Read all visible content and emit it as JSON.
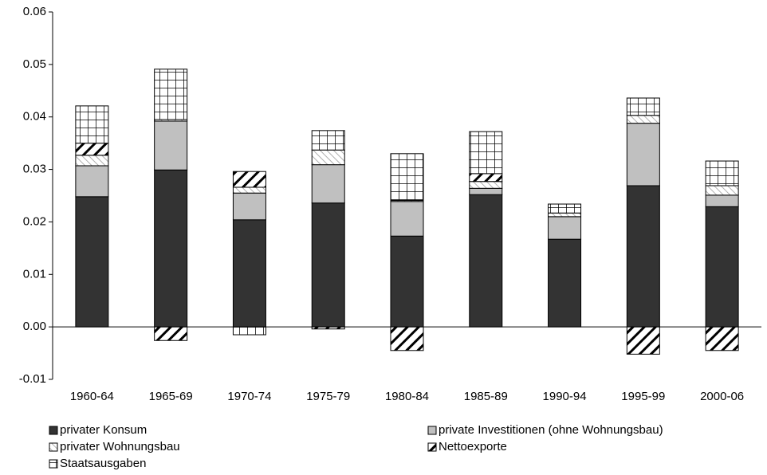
{
  "chart_data": {
    "type": "stacked-bar",
    "categories": [
      "1960-64",
      "1965-69",
      "1970-74",
      "1975-79",
      "1980-84",
      "1985-89",
      "1990-94",
      "1995-99",
      "2000-06"
    ],
    "series": [
      {
        "name": "privater Konsum",
        "color": "#333333",
        "pattern": "solid",
        "values": [
          0.0248,
          0.0299,
          0.0204,
          0.0236,
          0.0173,
          0.0252,
          0.0167,
          0.0269,
          0.0229
        ]
      },
      {
        "name": "private Investitionen (ohne Wohnungsbau)",
        "color": "#c0c0c0",
        "pattern": "solid",
        "values": [
          0.0059,
          0.0093,
          0.0051,
          0.0073,
          0.0066,
          0.0012,
          0.0043,
          0.0119,
          0.0022
        ]
      },
      {
        "name": "privater Wohnungsbau",
        "color": "#c0c0c0",
        "pattern": "light-diagonal",
        "values": [
          0.002,
          0.0003,
          0.0011,
          0.0028,
          0.0002,
          0.0013,
          0.0007,
          0.0015,
          0.0018
        ]
      },
      {
        "name": "Nettoexporte",
        "color": "#000000",
        "pattern": "diagonal",
        "values": [
          0.0023,
          -0.0026,
          0.003,
          -0.0004,
          -0.0045,
          0.0015,
          0,
          -0.0052,
          -0.0045
        ]
      },
      {
        "name": "Staatsausgaben",
        "color": "#000000",
        "pattern": "grid",
        "values": [
          0.0071,
          0.0096,
          -0.0015,
          0.0037,
          0.0089,
          0.008,
          0.0017,
          0.0033,
          0.0047
        ]
      }
    ],
    "ylim": [
      -0.01,
      0.06
    ],
    "yticks": [
      -0.01,
      {
        "value": 0,
        "label": "0.00"
      },
      0.01,
      0.02,
      0.03,
      0.04,
      0.05,
      0.06
    ],
    "grid": false
  }
}
